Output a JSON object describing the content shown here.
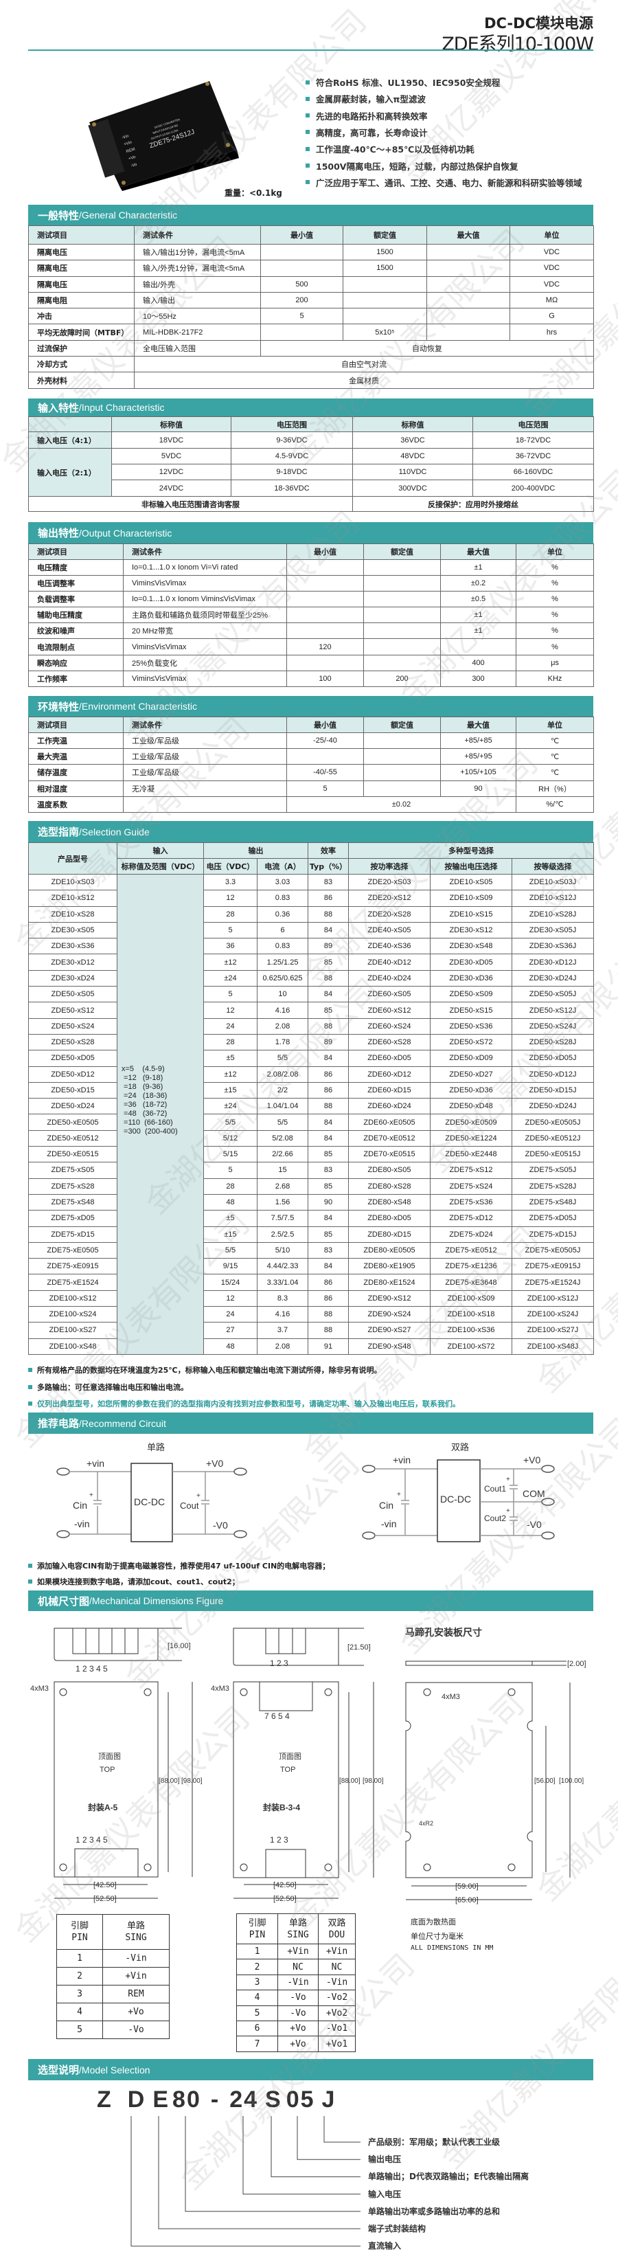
{
  "header": {
    "title_line1": "DC-DC模块电源",
    "title_line2": "ZDE系列10-100W"
  },
  "product_photo": {
    "label_model": "ZDE75-24S12J",
    "label_lines": [
      "DC/DC CONVERTER",
      "INPUT:24VDC(18-36)",
      "OUTPUT:12VDC 6.25A"
    ],
    "pins": [
      "-Vin",
      "+Vin",
      "REM",
      "+Vo",
      "-Vo"
    ]
  },
  "features": [
    "符合RoHS 标准、UL1950、IEC950安全规程",
    "金属屏蔽封装，输入π型滤波",
    "先进的电路拓扑和高转换效率",
    "高精度，高可靠，长寿命设计",
    "工作温度-40℃～+85℃以及低待机功耗",
    "1500V隔离电压，短路，过载，内部过热保护自恢复",
    "广泛应用于军工、通讯、工控、交通、电力、新能源和科研实验等领域"
  ],
  "weight": "重量：<0.1kg",
  "accent_color": "#3aa3a3",
  "general": {
    "title_cn": "一般特性",
    "title_en": "/General Characteristic",
    "header": [
      "测试项目",
      "测试条件",
      "最小值",
      "额定值",
      "最大值",
      "单位"
    ],
    "rows": [
      [
        "隔离电压",
        "输入/输出1分钟，漏电流<5mA",
        "",
        "1500",
        "",
        "VDC"
      ],
      [
        "隔离电压",
        "输入/外壳1分钟，漏电流<5mA",
        "",
        "1500",
        "",
        "VDC"
      ],
      [
        "隔离电压",
        "输出/外壳",
        "500",
        "",
        "",
        "VDC"
      ],
      [
        "隔离电阻",
        "输入/输出",
        "200",
        "",
        "",
        "MΩ"
      ],
      [
        "冲击",
        "10～55Hz",
        "5",
        "",
        "",
        "G"
      ],
      [
        "平均无故障时间（MTBF）",
        "MIL-HDBK-217F2",
        "",
        "5x10⁵",
        "",
        "hrs"
      ],
      [
        "过流保护",
        "全电压输入范围",
        "自动恢复"
      ],
      [
        "冷却方式",
        "自由空气对流"
      ],
      [
        "外壳材料",
        "金属材质"
      ]
    ]
  },
  "input": {
    "title_cn": "输入特性",
    "title_en": "/Input Characteristic",
    "header": [
      "",
      "标称值",
      "电压范围",
      "标称值",
      "电压范围"
    ],
    "label_4_1": "输入电压（4:1）",
    "label_2_1": "输入电压（2:1）",
    "rows": [
      [
        "18VDC",
        "9-36VDC",
        "36VDC",
        "18-72VDC"
      ],
      [
        "5VDC",
        "4.5-9VDC",
        "48VDC",
        "36-72VDC"
      ],
      [
        "12VDC",
        "9-18VDC",
        "110VDC",
        "66-160VDC"
      ],
      [
        "24VDC",
        "18-36VDC",
        "300VDC",
        "200-400VDC"
      ]
    ],
    "footer_left": "非标输入电压范围请咨询客服",
    "footer_right": "反接保护：应用时外接熔丝"
  },
  "output": {
    "title_cn": "输出特性",
    "title_en": "/Output Characteristic",
    "header": [
      "测试项目",
      "测试条件",
      "最小值",
      "额定值",
      "最大值",
      "单位"
    ],
    "rows": [
      [
        "电压精度",
        "Io=0.1...1.0 x Ionom Vi=Vi rated",
        "",
        "",
        "±1",
        "%"
      ],
      [
        "电压调整率",
        "Vimin≤Vi≤Vimax",
        "",
        "",
        "±0.2",
        "%"
      ],
      [
        "负载调整率",
        "Io=0.1...1.0 x Ionom Vimin≤Vi≤Vimax",
        "",
        "",
        "±0.5",
        "%"
      ],
      [
        "辅助电压精度",
        "主路负载和辅路负载须同时带载至少25%",
        "",
        "",
        "±1",
        "%"
      ],
      [
        "纹波和噪声",
        "20 MHz带宽",
        "",
        "",
        "±1",
        "%"
      ],
      [
        "电流限制点",
        "Vimin≤Vi≤Vimax",
        "120",
        "",
        "",
        "%"
      ],
      [
        "瞬态响应",
        "25%负载变化",
        "",
        "",
        "400",
        "μs"
      ],
      [
        "工作频率",
        "Vimin≤Vi≤Vimax",
        "100",
        "200",
        "300",
        "KHz"
      ]
    ]
  },
  "environment": {
    "title_cn": "环境特性",
    "title_en": "/Environment Characteristic",
    "header": [
      "测试项目",
      "测试条件",
      "最小值",
      "额定值",
      "最大值",
      "单位"
    ],
    "rows": [
      [
        "工作壳温",
        "工业级/军品级",
        "-25/-40",
        "",
        "+85/+85",
        "℃"
      ],
      [
        "最大壳温",
        "工业级/军品级",
        "",
        "",
        "+85/+95",
        "℃"
      ],
      [
        "储存温度",
        "工业级/军品级",
        "-40/-55",
        "",
        "+105/+105",
        "℃"
      ],
      [
        "相对湿度",
        "无冷凝",
        "5",
        "",
        "90",
        "RH（%）"
      ],
      [
        "温度系数",
        "",
        "±0.02",
        "%/℃"
      ]
    ]
  },
  "selection": {
    "title_cn": "选型指南",
    "title_en": "/Selection Guide",
    "header_top": [
      "产品型号",
      "输入",
      "输出",
      "效率",
      "多种型号选择"
    ],
    "header_sub": [
      "标称值及范围（VDC）",
      "电压（VDC）",
      "电流（A）",
      "Typ（%）",
      "按功率选择",
      "按输出电压选择",
      "按等级选择"
    ],
    "input_ranges": "x=5    (4.5-9)\n =12   (9-18)\n =18   (9-36)\n =24   (18-36)\n =36   (18-72)\n =48   (36-72)\n =110  (66-160)\n =300  (200-400)",
    "rows": [
      [
        "ZDE10-xS03",
        "3.3",
        "3.03",
        "83",
        "ZDE20-xS03",
        "ZDE10-xS05",
        "ZDE10-xS03J"
      ],
      [
        "ZDE10-xS12",
        "12",
        "0.83",
        "86",
        "ZDE20-xS12",
        "ZDE10-xS09",
        "ZDE10-xS12J"
      ],
      [
        "ZDE10-xS28",
        "28",
        "0.36",
        "88",
        "ZDE20-xS28",
        "ZDE10-xS15",
        "ZDE10-xS28J"
      ],
      [
        "ZDE30-xS05",
        "5",
        "6",
        "84",
        "ZDE40-xS05",
        "ZDE30-xS12",
        "ZDE30-xS05J"
      ],
      [
        "ZDE30-xS36",
        "36",
        "0.83",
        "89",
        "ZDE40-xS36",
        "ZDE30-xS48",
        "ZDE30-xS36J"
      ],
      [
        "ZDE30-xD12",
        "±12",
        "1.25/1.25",
        "85",
        "ZDE40-xD12",
        "ZDE30-xD05",
        "ZDE30-xD12J"
      ],
      [
        "ZDE30-xD24",
        "±24",
        "0.625/0.625",
        "88",
        "ZDE40-xD24",
        "ZDE30-xD36",
        "ZDE30-xD24J"
      ],
      [
        "ZDE50-xS05",
        "5",
        "10",
        "84",
        "ZDE60-xS05",
        "ZDE50-xS09",
        "ZDE50-xS05J"
      ],
      [
        "ZDE50-xS12",
        "12",
        "4.16",
        "85",
        "ZDE60-xS12",
        "ZDE50-xS15",
        "ZDE50-xS12J"
      ],
      [
        "ZDE50-xS24",
        "24",
        "2.08",
        "88",
        "ZDE60-xS24",
        "ZDE50-xS36",
        "ZDE50-xS24J"
      ],
      [
        "ZDE50-xS28",
        "28",
        "1.78",
        "89",
        "ZDE60-xS28",
        "ZDE50-xS72",
        "ZDE50-xS28J"
      ],
      [
        "ZDE50-xD05",
        "±5",
        "5/5",
        "84",
        "ZDE60-xD05",
        "ZDE50-xD09",
        "ZDE50-xD05J"
      ],
      [
        "ZDE50-xD12",
        "±12",
        "2.08/2.08",
        "86",
        "ZDE60-xD12",
        "ZDE50-xD27",
        "ZDE50-xD12J"
      ],
      [
        "ZDE50-xD15",
        "±15",
        "2/2",
        "86",
        "ZDE60-xD15",
        "ZDE50-xD36",
        "ZDE50-xD15J"
      ],
      [
        "ZDE50-xD24",
        "±24",
        "1.04/1.04",
        "88",
        "ZDE60-xD24",
        "ZDE50-xD48",
        "ZDE50-xD24J"
      ],
      [
        "ZDE50-xE0505",
        "5/5",
        "5/5",
        "84",
        "ZDE60-xE0505",
        "ZDE50-xE0509",
        "ZDE50-xE0505J"
      ],
      [
        "ZDE50-xE0512",
        "5/12",
        "5/2.08",
        "84",
        "ZDE70-xE0512",
        "ZDE50-xE1224",
        "ZDE50-xE0512J"
      ],
      [
        "ZDE50-xE0515",
        "5/15",
        "2/2.66",
        "85",
        "ZDE70-xE0515",
        "ZDE50-xE2448",
        "ZDE50-xE0515J"
      ],
      [
        "ZDE75-xS05",
        "5",
        "15",
        "83",
        "ZDE80-xS05",
        "ZDE75-xS12",
        "ZDE75-xS05J"
      ],
      [
        "ZDE75-xS28",
        "28",
        "2.68",
        "85",
        "ZDE80-xS28",
        "ZDE75-xS24",
        "ZDE75-xS28J"
      ],
      [
        "ZDE75-xS48",
        "48",
        "1.56",
        "90",
        "ZDE80-xS48",
        "ZDE75-xS36",
        "ZDE75-xS48J"
      ],
      [
        "ZDE75-xD05",
        "±5",
        "7.5/7.5",
        "84",
        "ZDE80-xD05",
        "ZDE75-xD12",
        "ZDE75-xD05J"
      ],
      [
        "ZDE75-xD15",
        "±15",
        "2.5/2.5",
        "85",
        "ZDE80-xD15",
        "ZDE75-xD24",
        "ZDE75-xD15J"
      ],
      [
        "ZDE75-xE0505",
        "5/5",
        "5/10",
        "83",
        "ZDE80-xE0505",
        "ZDE75-xE0512",
        "ZDE75-xE0505J"
      ],
      [
        "ZDE75-xE0915",
        "9/15",
        "4.44/2.33",
        "84",
        "ZDE80-xE1905",
        "ZDE75-xE1236",
        "ZDE75-xE0915J"
      ],
      [
        "ZDE75-xE1524",
        "15/24",
        "3.33/1.04",
        "86",
        "ZDE80-xE1524",
        "ZDE75-xE3648",
        "ZDE75-xE1524J"
      ],
      [
        "ZDE100-xS12",
        "12",
        "8.3",
        "86",
        "ZDE90-xS12",
        "ZDE100-xS09",
        "ZDE100-xS12J"
      ],
      [
        "ZDE100-xS24",
        "24",
        "4.16",
        "88",
        "ZDE90-xS24",
        "ZDE100-xS18",
        "ZDE100-xS24J"
      ],
      [
        "ZDE100-xS27",
        "27",
        "3.7",
        "88",
        "ZDE90-xS27",
        "ZDE100-xS36",
        "ZDE100-xS27J"
      ],
      [
        "ZDE100-xS48",
        "48",
        "2.08",
        "91",
        "ZDE90-xS48",
        "ZDE100-xS72",
        "ZDE100-xS48J"
      ]
    ],
    "notes": [
      "所有规格产品的数据均在环境温度为25℃，标称输入电压和额定输出电流下测试所得，除非另有说明。",
      "多路输出：可任意选择输出电压和输出电流。",
      "仅列出典型型号，如您所需的参数在我们的选型指南内没有找到对应参数和型号，请确定功率、输入及输出电压后，联系我们。"
    ]
  },
  "circuit": {
    "title_cn": "推荐电路",
    "title_en": "/Recommend Circuit",
    "single": {
      "title": "单路",
      "vin_pos": "+vin",
      "vin_neg": "-vin",
      "cin": "Cin",
      "block": "DC-DC",
      "cout": "Cout",
      "vo_pos": "+V0",
      "vo_neg": "-V0"
    },
    "dual": {
      "title": "双路",
      "vin_pos": "+vin",
      "vin_neg": "-vin",
      "cin": "Cin",
      "block": "DC-DC",
      "cout1": "Cout1",
      "cout2": "Cout2",
      "com": "COM",
      "vo_pos": "+V0",
      "vo_neg": "-V0"
    },
    "plus": "+",
    "notes": [
      "添加输入电容CIN有助于提高电磁兼容性，推荐使用47 uf-100uf CIN的电解电容器；",
      "如果模块连接到数字电路，请添加cout、cout1、cout2；"
    ]
  },
  "mechanical": {
    "title_cn": "机械尺寸图",
    "title_en": "/Mechanical Dimensions Figure",
    "plate_title": "马蹄孔安装板尺寸",
    "dims": {
      "h_a": "[16.00]",
      "h_b": "[21.50]",
      "plate_t": "[2.00]",
      "inner_len": "[88.00]",
      "outer_len": "[98.00]",
      "hole_span": "[42.50]",
      "width": "[52.50]",
      "plate_inner": "[56.00]",
      "plate_len": "[100.00]",
      "plate_hole": "[59.00]",
      "plate_width": "[65.00]"
    },
    "screw": "4xM3",
    "radius": "4xR2",
    "top_cn": "顶面图",
    "top_en": "TOP",
    "pkg_a": "封装A-5",
    "pkg_b": "封装B-3-4",
    "pins_a": "1 2 3 4 5",
    "pins_b_bottom": "1 2 3",
    "pins_b_top": "7 6 5 4",
    "plate_notes": [
      "底面为散热面",
      "单位尺寸为毫米",
      "ALL DIMENSIONS IN MM"
    ],
    "pin_table_a": {
      "header": [
        "引脚\nPIN",
        "单路\nSING"
      ],
      "rows": [
        [
          "1",
          "-Vin"
        ],
        [
          "2",
          "+Vin"
        ],
        [
          "3",
          "REM"
        ],
        [
          "4",
          "+Vo"
        ],
        [
          "5",
          "-Vo"
        ]
      ]
    },
    "pin_table_b": {
      "header": [
        "引脚\nPIN",
        "单路\nSING",
        "双路\nDOU"
      ],
      "rows": [
        [
          "1",
          "+Vin",
          "+Vin"
        ],
        [
          "2",
          "NC",
          "NC"
        ],
        [
          "3",
          "-Vin",
          "-Vin"
        ],
        [
          "4",
          "-Vo",
          "-Vo2"
        ],
        [
          "5",
          "-Vo",
          "+Vo2"
        ],
        [
          "6",
          "+Vo",
          "-Vo1"
        ],
        [
          "7",
          "+Vo",
          "+Vo1"
        ]
      ]
    }
  },
  "model": {
    "title_cn": "选型说明",
    "title_en": "/Model Selection",
    "code_parts": [
      "Z",
      "D",
      "E",
      "80",
      "-",
      "24",
      "S",
      "05",
      "J"
    ],
    "legend": [
      "产品级别：军用级；默认代表工业级",
      "输出电压",
      "单路输出；D代表双路输出；E代表输出隔离",
      "输入电压",
      "单路输出功率或多路输出功率的总和",
      "端子式封装结构",
      "直流输入"
    ]
  },
  "watermark": "金湖亿嘉仪表有限公司"
}
